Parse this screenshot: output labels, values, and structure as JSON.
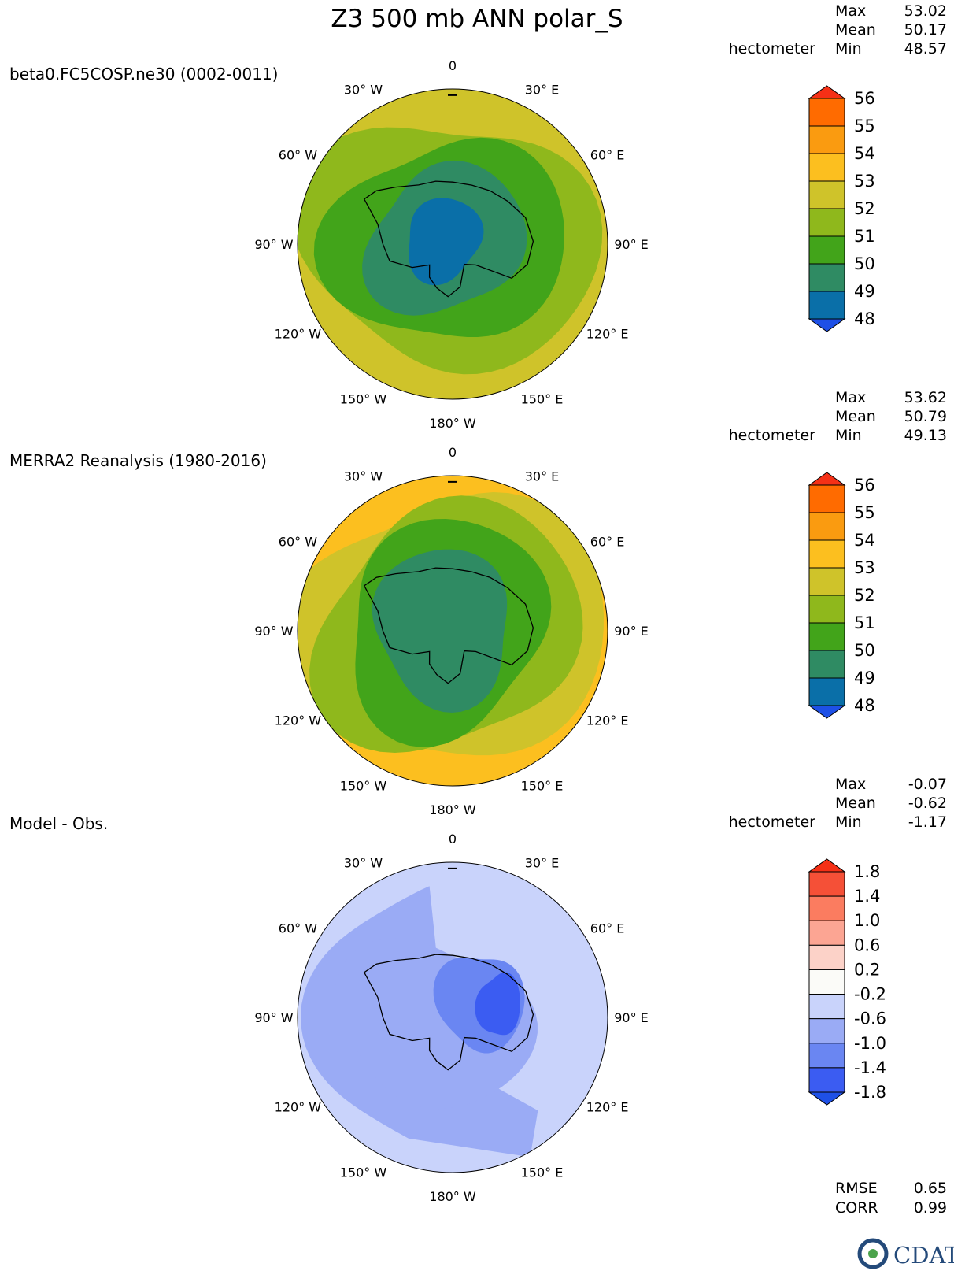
{
  "chart_data": {
    "title": "Z3 500 mb ANN polar_S",
    "panels": [
      {
        "name": "beta0.FC5COSP.ne30 (0002-0011)",
        "type": "heatmap",
        "projection": "polar stereographic (south)",
        "units": "hectometer",
        "stats": {
          "max": "53.02",
          "mean": "50.17",
          "min": "48.57"
        },
        "levels": [
          48,
          49,
          50,
          51,
          52,
          53,
          54,
          55,
          56
        ],
        "level_labels": [
          "56",
          "55",
          "54",
          "53",
          "52",
          "51",
          "50",
          "49",
          "48"
        ],
        "colors": [
          "#0a6fa8",
          "#2f8b63",
          "#42a41a",
          "#8fb81c",
          "#cfc32a",
          "#fcbf1f",
          "#fa9b10",
          "#ff6b00"
        ],
        "low_color": "#1e50e6",
        "high_color": "#f53016",
        "field_rings": [
          {
            "level": 52,
            "color": "#cfc32a",
            "radius_frac": 1.0
          },
          {
            "level": 51,
            "color": "#8fb81c",
            "radius_frac": 0.89
          },
          {
            "level": 50,
            "color": "#42a41a",
            "radius_frac": 0.72
          },
          {
            "level": 49,
            "color": "#2f8b63",
            "radius_frac": 0.5
          },
          {
            "level": 48.5,
            "color": "#0a6fa8",
            "radius_frac": 0.26
          }
        ]
      },
      {
        "name": "MERRA2 Reanalysis (1980-2016)",
        "type": "heatmap",
        "projection": "polar stereographic (south)",
        "units": "hectometer",
        "stats": {
          "max": "53.62",
          "mean": "50.79",
          "min": "49.13"
        },
        "levels": [
          48,
          49,
          50,
          51,
          52,
          53,
          54,
          55,
          56
        ],
        "level_labels": [
          "56",
          "55",
          "54",
          "53",
          "52",
          "51",
          "50",
          "49",
          "48"
        ],
        "colors": [
          "#0a6fa8",
          "#2f8b63",
          "#42a41a",
          "#8fb81c",
          "#cfc32a",
          "#fcbf1f",
          "#fa9b10",
          "#ff6b00"
        ],
        "low_color": "#1e50e6",
        "high_color": "#f53016",
        "field_rings": [
          {
            "level": 53,
            "color": "#fcbf1f",
            "radius_frac": 1.0
          },
          {
            "level": 52,
            "color": "#cfc32a",
            "radius_frac": 0.95
          },
          {
            "level": 51,
            "color": "#8fb81c",
            "radius_frac": 0.83
          },
          {
            "level": 50,
            "color": "#42a41a",
            "radius_frac": 0.68
          },
          {
            "level": 49,
            "color": "#2f8b63",
            "radius_frac": 0.48
          }
        ]
      },
      {
        "name": "Model - Obs.",
        "type": "heatmap",
        "projection": "polar stereographic (south)",
        "units": "hectometer",
        "stats": {
          "max": "-0.07",
          "mean": "-0.62",
          "min": "-1.17"
        },
        "levels": [
          -1.8,
          -1.4,
          -1.0,
          -0.6,
          -0.2,
          0.2,
          0.6,
          1.0,
          1.4,
          1.8
        ],
        "level_labels": [
          "1.8",
          "1.4",
          "1.0",
          "0.6",
          "0.2",
          "-0.2",
          "-0.6",
          "-1.0",
          "-1.4",
          "-1.8"
        ],
        "colors": [
          "#3b5cf2",
          "#6a86f2",
          "#9aabf5",
          "#c9d3fb",
          "#fbfbf8",
          "#fcd2c8",
          "#fca593",
          "#fb7c60",
          "#f55037"
        ],
        "low_color": "#1e50e6",
        "high_color": "#f53016",
        "rmse": "0.65",
        "corr": "0.99"
      }
    ],
    "longitude_labels": [
      "0",
      "30° E",
      "60° E",
      "90° E",
      "120° E",
      "150° E",
      "180° W",
      "150° W",
      "120° W",
      "90° W",
      "60° W",
      "30° W"
    ],
    "stat_labels": {
      "max": "Max",
      "mean": "Mean",
      "min": "Min",
      "rmse": "RMSE",
      "corr": "CORR"
    },
    "logo_text": "CDAT"
  },
  "colors": {
    "coastline": "#000000",
    "logo": "#244a7a"
  }
}
